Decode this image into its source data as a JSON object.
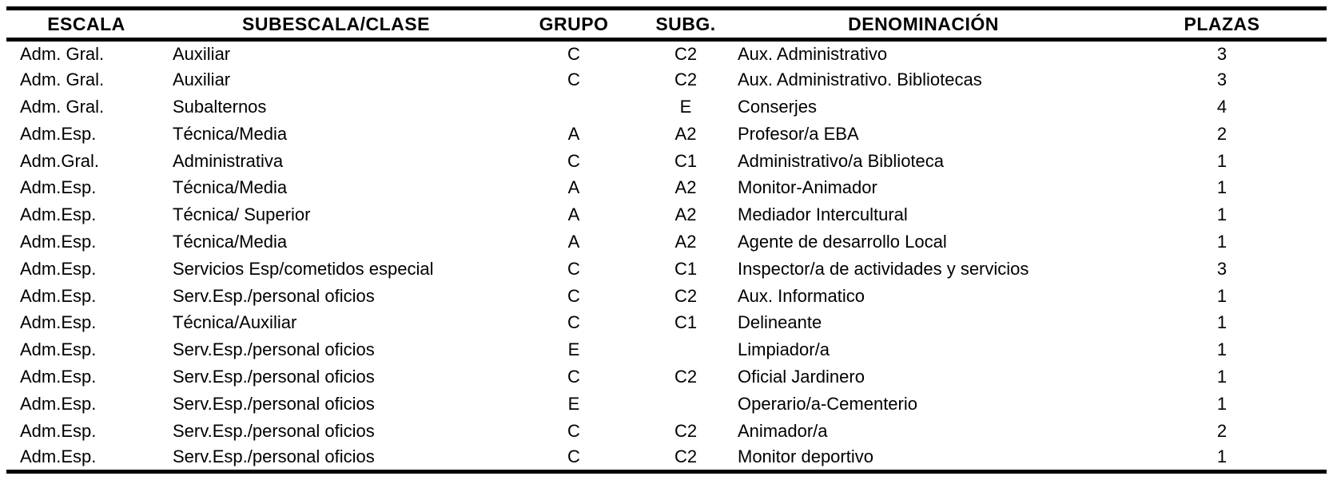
{
  "table": {
    "columns": [
      {
        "key": "escala",
        "label": "ESCALA"
      },
      {
        "key": "subescala",
        "label": "SUBESCALA/CLASE"
      },
      {
        "key": "grupo",
        "label": "GRUPO"
      },
      {
        "key": "subg",
        "label": "SUBG."
      },
      {
        "key": "denominacion",
        "label": "DENOMINACIÓN"
      },
      {
        "key": "plazas",
        "label": "PLAZAS"
      }
    ],
    "rows": [
      {
        "escala": "Adm. Gral.",
        "subescala": "Auxiliar",
        "grupo": "C",
        "subg": "C2",
        "denominacion": "Aux. Administrativo",
        "plazas": "3"
      },
      {
        "escala": "Adm. Gral.",
        "subescala": "Auxiliar",
        "grupo": "C",
        "subg": "C2",
        "denominacion": "Aux. Administrativo. Bibliotecas",
        "plazas": "3"
      },
      {
        "escala": "Adm. Gral.",
        "subescala": "Subalternos",
        "grupo": "",
        "subg": "E",
        "denominacion": "Conserjes",
        "plazas": "4"
      },
      {
        "escala": "Adm.Esp.",
        "subescala": "Técnica/Media",
        "grupo": "A",
        "subg": "A2",
        "denominacion": "Profesor/a EBA",
        "plazas": "2"
      },
      {
        "escala": "Adm.Gral.",
        "subescala": "Administrativa",
        "grupo": "C",
        "subg": "C1",
        "denominacion": "Administrativo/a Biblioteca",
        "plazas": "1"
      },
      {
        "escala": "Adm.Esp.",
        "subescala": "Técnica/Media",
        "grupo": "A",
        "subg": "A2",
        "denominacion": "Monitor-Animador",
        "plazas": "1"
      },
      {
        "escala": "Adm.Esp.",
        "subescala": "Técnica/ Superior",
        "grupo": "A",
        "subg": "A2",
        "denominacion": "Mediador Intercultural",
        "plazas": "1"
      },
      {
        "escala": "Adm.Esp.",
        "subescala": "Técnica/Media",
        "grupo": "A",
        "subg": "A2",
        "denominacion": "Agente de desarrollo Local",
        "plazas": "1"
      },
      {
        "escala": "Adm.Esp.",
        "subescala": "Servicios Esp/cometidos especial",
        "grupo": "C",
        "subg": "C1",
        "denominacion": "Inspector/a de actividades y servicios",
        "plazas": "3"
      },
      {
        "escala": "Adm.Esp.",
        "subescala": "Serv.Esp./personal oficios",
        "grupo": "C",
        "subg": "C2",
        "denominacion": "Aux. Informatico",
        "plazas": "1"
      },
      {
        "escala": "Adm.Esp.",
        "subescala": "Técnica/Auxiliar",
        "grupo": "C",
        "subg": "C1",
        "denominacion": "Delineante",
        "plazas": "1"
      },
      {
        "escala": "Adm.Esp.",
        "subescala": "Serv.Esp./personal oficios",
        "grupo": "E",
        "subg": "",
        "denominacion": "Limpiador/a",
        "plazas": "1"
      },
      {
        "escala": "Adm.Esp.",
        "subescala": "Serv.Esp./personal oficios",
        "grupo": "C",
        "subg": "C2",
        "denominacion": "Oficial Jardinero",
        "plazas": "1"
      },
      {
        "escala": "Adm.Esp.",
        "subescala": "Serv.Esp./personal oficios",
        "grupo": "E",
        "subg": "",
        "denominacion": "Operario/a-Cementerio",
        "plazas": "1"
      },
      {
        "escala": "Adm.Esp.",
        "subescala": "Serv.Esp./personal oficios",
        "grupo": "C",
        "subg": "C2",
        "denominacion": "Animador/a",
        "plazas": "2"
      },
      {
        "escala": "Adm.Esp.",
        "subescala": "Serv.Esp./personal oficios",
        "grupo": "C",
        "subg": "C2",
        "denominacion": "Monitor deportivo",
        "plazas": "1"
      }
    ],
    "colors": {
      "text": "#000000",
      "background": "#ffffff",
      "rule": "#000000"
    }
  }
}
